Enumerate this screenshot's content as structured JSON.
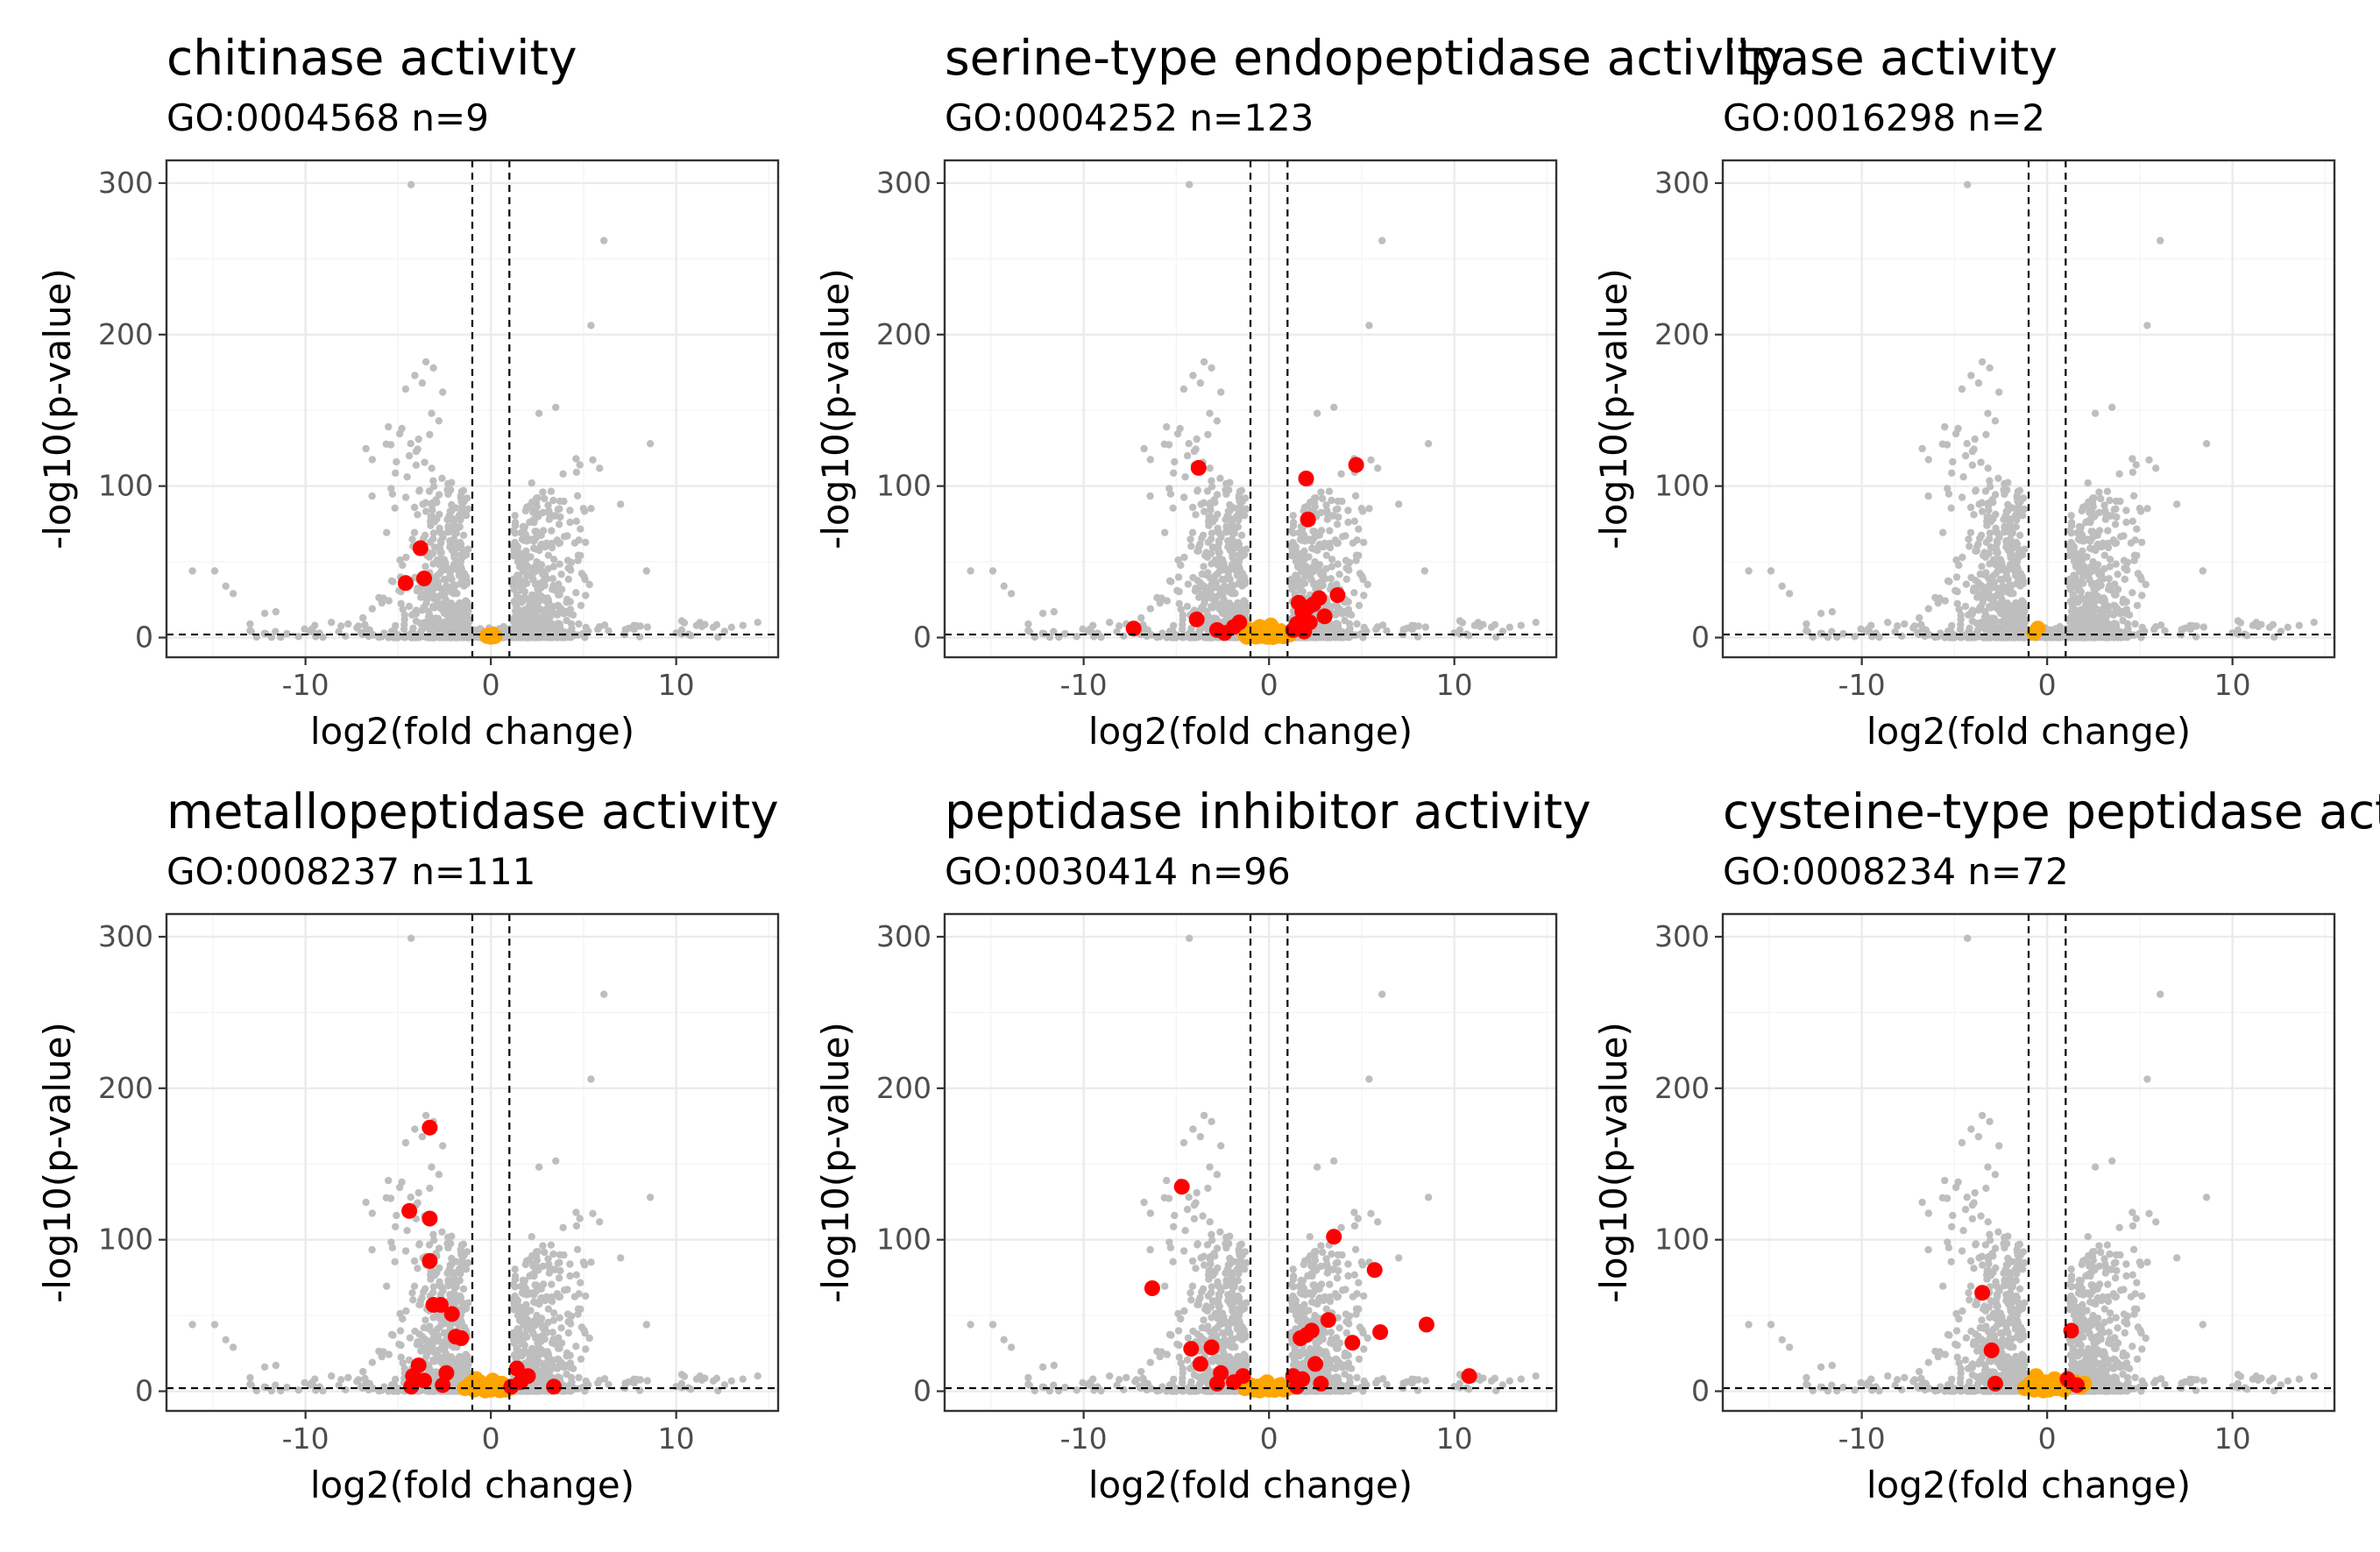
{
  "figure": {
    "theme": "bw",
    "colors": {
      "background": "#ffffff",
      "panel_border": "#333333",
      "grid_major": "#ebebeb",
      "grid_minor": "#f5f5f5",
      "background_points": "#bebebe",
      "significant_points": "#ff0000",
      "nonsignificant_points": "#ffa500",
      "threshold_lines": "#000000"
    }
  },
  "chart_data": [
    {
      "type": "scatter",
      "title": "chitinase activity",
      "subtitle": "GO:0004568 n=9",
      "xlabel": "log2(fold change)",
      "ylabel": "-log10(p-value)",
      "xlim": [
        -17.5,
        15.5
      ],
      "ylim": [
        -13,
        315
      ],
      "xticks": [
        -10,
        0,
        10
      ],
      "yticks": [
        0,
        100,
        200,
        300
      ],
      "grid": true,
      "vlines": [
        -1,
        1
      ],
      "hline": 2,
      "highlight_red": [
        [
          -3.8,
          59
        ],
        [
          -4.6,
          36
        ],
        [
          -3.6,
          39
        ]
      ],
      "highlight_orange": [
        [
          0.0,
          0.5
        ],
        [
          -0.2,
          1
        ],
        [
          0.2,
          0.8
        ],
        [
          -0.1,
          1.5
        ],
        [
          0.1,
          2
        ],
        [
          0.0,
          1.2
        ]
      ]
    },
    {
      "type": "scatter",
      "title": "serine-type endopeptidase activity",
      "subtitle": "GO:0004252 n=123",
      "xlabel": "log2(fold change)",
      "ylabel": "-log10(p-value)",
      "xlim": [
        -17.5,
        15.5
      ],
      "ylim": [
        -13,
        315
      ],
      "xticks": [
        -10,
        0,
        10
      ],
      "yticks": [
        0,
        100,
        200,
        300
      ],
      "grid": true,
      "vlines": [
        -1,
        1
      ],
      "hline": 2,
      "highlight_red": [
        [
          -3.8,
          112
        ],
        [
          4.7,
          114
        ],
        [
          2.0,
          105
        ],
        [
          2.1,
          78
        ],
        [
          -7.3,
          6
        ],
        [
          -3.9,
          12
        ],
        [
          -2.8,
          5
        ],
        [
          -2.4,
          3
        ],
        [
          -1.9,
          7
        ],
        [
          -1.6,
          10
        ],
        [
          1.3,
          5
        ],
        [
          1.5,
          9
        ],
        [
          1.8,
          17
        ],
        [
          2.1,
          20
        ],
        [
          2.4,
          22
        ],
        [
          1.6,
          23
        ],
        [
          2.7,
          26
        ],
        [
          3.7,
          28
        ],
        [
          3.0,
          14
        ],
        [
          1.9,
          4
        ],
        [
          2.2,
          10
        ]
      ],
      "highlight_orange": [
        [
          -1.3,
          2
        ],
        [
          -1.0,
          5
        ],
        [
          -0.8,
          1
        ],
        [
          -0.6,
          3
        ],
        [
          -0.5,
          7
        ],
        [
          -0.4,
          1
        ],
        [
          -0.3,
          4
        ],
        [
          -0.2,
          2
        ],
        [
          -0.1,
          0.5
        ],
        [
          0.0,
          1
        ],
        [
          0.1,
          3
        ],
        [
          0.2,
          2
        ],
        [
          0.3,
          5
        ],
        [
          0.4,
          1
        ],
        [
          0.5,
          2
        ],
        [
          0.6,
          4
        ],
        [
          0.7,
          1
        ],
        [
          0.9,
          3
        ],
        [
          1.1,
          2
        ],
        [
          -1.2,
          0.5
        ],
        [
          0.2,
          0.3
        ],
        [
          -0.7,
          0.6
        ],
        [
          0.8,
          0.8
        ],
        [
          -0.2,
          6
        ],
        [
          0.1,
          8
        ]
      ]
    },
    {
      "type": "scatter",
      "title": "lipase activity",
      "subtitle": "GO:0016298 n=2",
      "xlabel": "log2(fold change)",
      "ylabel": "-log10(p-value)",
      "xlim": [
        -17.5,
        15.5
      ],
      "ylim": [
        -13,
        315
      ],
      "xticks": [
        -10,
        0,
        10
      ],
      "yticks": [
        0,
        100,
        200,
        300
      ],
      "grid": true,
      "vlines": [
        -1,
        1
      ],
      "hline": 2,
      "highlight_red": [],
      "highlight_orange": [
        [
          -0.7,
          3
        ],
        [
          -0.5,
          6
        ]
      ]
    },
    {
      "type": "scatter",
      "title": "metallopeptidase activity",
      "subtitle": "GO:0008237 n=111",
      "xlabel": "log2(fold change)",
      "ylabel": "-log10(p-value)",
      "xlim": [
        -17.5,
        15.5
      ],
      "ylim": [
        -13,
        315
      ],
      "xticks": [
        -10,
        0,
        10
      ],
      "yticks": [
        0,
        100,
        200,
        300
      ],
      "grid": true,
      "vlines": [
        -1,
        1
      ],
      "hline": 2,
      "highlight_red": [
        [
          -3.3,
          174
        ],
        [
          -4.4,
          119
        ],
        [
          -3.3,
          114
        ],
        [
          -3.3,
          86
        ],
        [
          -3.1,
          57
        ],
        [
          -2.7,
          57
        ],
        [
          -2.1,
          51
        ],
        [
          -1.9,
          36
        ],
        [
          -1.6,
          35
        ],
        [
          -4.2,
          10
        ],
        [
          -3.9,
          17
        ],
        [
          -3.6,
          7
        ],
        [
          -2.4,
          12
        ],
        [
          -2.6,
          4
        ],
        [
          -4.3,
          3
        ],
        [
          1.4,
          15
        ],
        [
          2.0,
          10
        ],
        [
          1.6,
          6
        ],
        [
          3.4,
          3
        ],
        [
          1.1,
          3
        ]
      ],
      "highlight_orange": [
        [
          -1.4,
          2
        ],
        [
          -1.1,
          5
        ],
        [
          -0.9,
          1
        ],
        [
          -0.7,
          3
        ],
        [
          -0.6,
          6
        ],
        [
          -0.4,
          2
        ],
        [
          -0.2,
          4
        ],
        [
          0.0,
          1
        ],
        [
          0.2,
          3
        ],
        [
          0.4,
          2
        ],
        [
          0.6,
          5
        ],
        [
          0.8,
          1
        ],
        [
          1.0,
          2
        ],
        [
          -0.3,
          0.5
        ],
        [
          0.1,
          7
        ],
        [
          0.5,
          0.6
        ],
        [
          -0.8,
          8
        ]
      ]
    },
    {
      "type": "scatter",
      "title": "peptidase inhibitor activity",
      "subtitle": "GO:0030414 n=96",
      "xlabel": "log2(fold change)",
      "ylabel": "-log10(p-value)",
      "xlim": [
        -17.5,
        15.5
      ],
      "ylim": [
        -13,
        315
      ],
      "xticks": [
        -10,
        0,
        10
      ],
      "yticks": [
        0,
        100,
        200,
        300
      ],
      "grid": true,
      "vlines": [
        -1,
        1
      ],
      "hline": 2,
      "highlight_red": [
        [
          -4.7,
          135
        ],
        [
          -6.3,
          68
        ],
        [
          -4.2,
          28
        ],
        [
          -3.1,
          29
        ],
        [
          -3.7,
          18
        ],
        [
          -2.6,
          12
        ],
        [
          -2.8,
          5
        ],
        [
          -1.9,
          6
        ],
        [
          -1.4,
          10
        ],
        [
          3.5,
          102
        ],
        [
          5.7,
          80
        ],
        [
          8.5,
          44
        ],
        [
          10.8,
          10
        ],
        [
          6.0,
          39
        ],
        [
          4.5,
          32
        ],
        [
          3.2,
          47
        ],
        [
          2.3,
          40
        ],
        [
          2.0,
          37
        ],
        [
          1.7,
          35
        ],
        [
          2.5,
          18
        ],
        [
          1.8,
          8
        ],
        [
          1.3,
          10
        ],
        [
          2.8,
          5
        ],
        [
          1.5,
          3
        ]
      ],
      "highlight_orange": [
        [
          -1.3,
          2
        ],
        [
          -1.0,
          4
        ],
        [
          -0.8,
          1
        ],
        [
          -0.6,
          3
        ],
        [
          -0.4,
          2
        ],
        [
          -0.2,
          5
        ],
        [
          0.0,
          1
        ],
        [
          0.2,
          3
        ],
        [
          0.4,
          2
        ],
        [
          0.6,
          4
        ],
        [
          0.8,
          1
        ],
        [
          1.0,
          2
        ],
        [
          -0.5,
          0.5
        ],
        [
          0.3,
          0.8
        ],
        [
          -0.1,
          6
        ]
      ]
    },
    {
      "type": "scatter",
      "title": "cysteine-type peptidase activity",
      "subtitle": "GO:0008234 n=72",
      "xlabel": "log2(fold change)",
      "ylabel": "-log10(p-value)",
      "xlim": [
        -17.5,
        15.5
      ],
      "ylim": [
        -13,
        315
      ],
      "xticks": [
        -10,
        0,
        10
      ],
      "yticks": [
        0,
        100,
        200,
        300
      ],
      "grid": true,
      "vlines": [
        -1,
        1
      ],
      "hline": 2,
      "highlight_red": [
        [
          -3.5,
          65
        ],
        [
          -3.0,
          27
        ],
        [
          -2.8,
          5
        ],
        [
          1.3,
          40
        ],
        [
          1.1,
          8
        ],
        [
          1.6,
          4
        ]
      ],
      "highlight_orange": [
        [
          -1.2,
          2
        ],
        [
          -0.9,
          5
        ],
        [
          -0.7,
          1
        ],
        [
          -0.5,
          3
        ],
        [
          -0.3,
          2
        ],
        [
          -0.1,
          6
        ],
        [
          0.1,
          1
        ],
        [
          0.3,
          3
        ],
        [
          0.5,
          2
        ],
        [
          0.7,
          4
        ],
        [
          0.9,
          1
        ],
        [
          1.5,
          6
        ],
        [
          1.8,
          3
        ],
        [
          2.0,
          5
        ],
        [
          -0.6,
          10
        ],
        [
          -0.2,
          0.5
        ],
        [
          0.4,
          8
        ]
      ]
    }
  ]
}
